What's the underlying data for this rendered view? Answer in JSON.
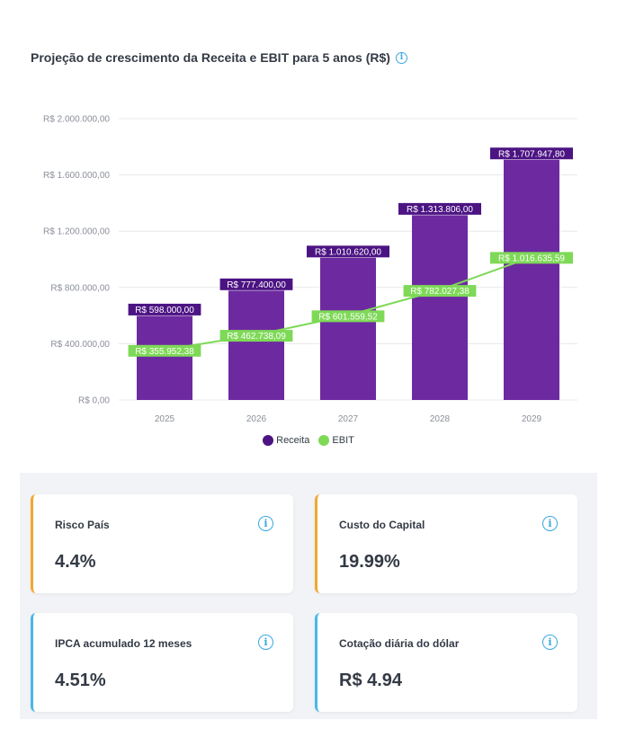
{
  "chart_data": {
    "type": "bar",
    "title": "Projeção de crescimento da Receita e EBIT para 5 anos (R$)",
    "categories": [
      "2025",
      "2026",
      "2027",
      "2028",
      "2029"
    ],
    "y_ticks": [
      "R$ 0,00",
      "R$ 400.000,00",
      "R$ 800.000,00",
      "R$ 1.200.000,00",
      "R$ 1.600.000,00",
      "R$ 2.000.000,00"
    ],
    "ylim": [
      0,
      2000000
    ],
    "grid": true,
    "legend_position": "bottom",
    "series": [
      {
        "name": "Receita",
        "kind": "bar",
        "color": "#6d2aa0",
        "values": [
          598000,
          777400,
          1010620,
          1313806,
          1707947.8
        ],
        "labels": [
          "R$ 598.000,00",
          "R$ 777.400,00",
          "R$ 1.010.620,00",
          "R$ 1.313.806,00",
          "R$ 1.707.947,80"
        ]
      },
      {
        "name": "EBIT",
        "kind": "line",
        "color": "#7ed957",
        "values": [
          355952.38,
          462738.09,
          601559.52,
          782027.38,
          1016635.59
        ],
        "labels": [
          "R$ 355.952,38",
          "R$ 462.738,09",
          "R$ 601.559,52",
          "R$ 782.027,38",
          "R$ 1.016.635,59"
        ]
      }
    ]
  },
  "legend": {
    "receita_label": "Receita",
    "ebit_label": "EBIT",
    "receita_color": "#4c1483",
    "ebit_color": "#7ed957"
  },
  "indicators": [
    {
      "label": "Risco País",
      "value": "4.4%",
      "accent": "#f0a92e"
    },
    {
      "label": "Custo do Capital",
      "value": "19.99%",
      "accent": "#f0a92e"
    },
    {
      "label": "IPCA acumulado 12 meses",
      "value": "4.51%",
      "accent": "#48b8e8"
    },
    {
      "label": "Cotação diária do dólar",
      "value": "R$ 4.94",
      "accent": "#48b8e8"
    }
  ],
  "icons": {
    "info": "info-icon"
  }
}
